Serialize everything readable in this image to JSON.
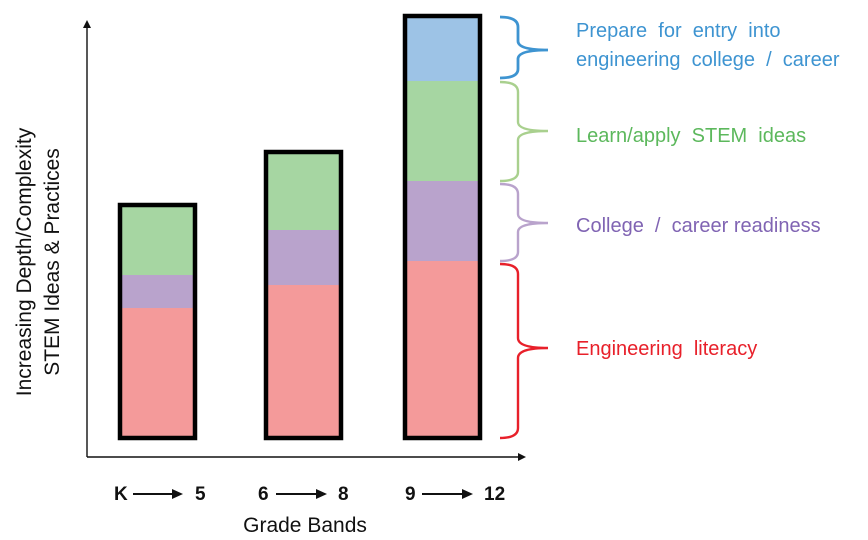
{
  "y_axis_title": {
    "line1": "Increasing Depth/Complexity",
    "line2": "STEM Ideas & Practices"
  },
  "x_axis_title": "Grade Bands",
  "grade_bands": [
    {
      "start": "K",
      "end": "5"
    },
    {
      "start": "6",
      "end": "8"
    },
    {
      "start": "9",
      "end": "12"
    }
  ],
  "stages": [
    {
      "id": "literacy",
      "label": "Engineering  literacy",
      "fill": "#f49a9a",
      "text_color": "#e8202a"
    },
    {
      "id": "readiness",
      "label": "College  /  career readiness",
      "fill": "#b9a3cc",
      "text_color": "#8064b3"
    },
    {
      "id": "stem",
      "label": "Learn/apply  STEM  ideas",
      "fill": "#a6d6a2",
      "text_color": "#5cb85c"
    },
    {
      "id": "entry",
      "label_lines": [
        "Prepare  for  entry  into",
        "engineering  college  /  career"
      ],
      "fill": "#9dc3e6",
      "text_color": "#3e94d1"
    }
  ],
  "bars": [
    {
      "grade_band": 0,
      "segments": [
        {
          "stage": "literacy",
          "value": 130
        },
        {
          "stage": "readiness",
          "value": 33
        },
        {
          "stage": "stem",
          "value": 70
        }
      ]
    },
    {
      "grade_band": 1,
      "segments": [
        {
          "stage": "literacy",
          "value": 153
        },
        {
          "stage": "readiness",
          "value": 55
        },
        {
          "stage": "stem",
          "value": 78
        }
      ]
    },
    {
      "grade_band": 2,
      "segments": [
        {
          "stage": "literacy",
          "value": 177
        },
        {
          "stage": "readiness",
          "value": 80
        },
        {
          "stage": "stem",
          "value": 100
        },
        {
          "stage": "entry",
          "value": 65
        }
      ]
    }
  ],
  "colors": {
    "axis": "#111111",
    "bar_outline": "#000000"
  }
}
